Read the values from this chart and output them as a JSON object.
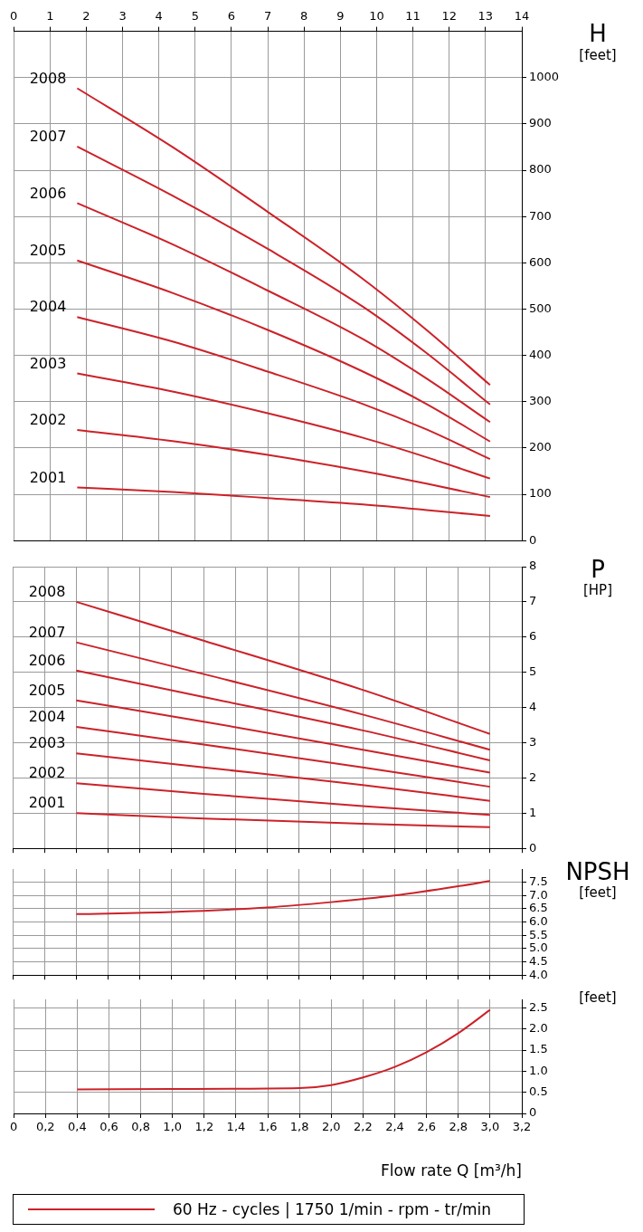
{
  "chart_data": [
    {
      "type": "line",
      "ylabel": "H [feet]",
      "xlim": [
        0,
        3.2
      ],
      "x2lim": [
        0,
        14
      ],
      "x2ticks": [
        0,
        1,
        2,
        3,
        4,
        5,
        6,
        7,
        8,
        9,
        10,
        11,
        12,
        13,
        14
      ],
      "ylim": [
        0,
        1100
      ],
      "yticks": [
        0,
        100,
        200,
        300,
        400,
        500,
        600,
        700,
        800,
        900,
        1000
      ],
      "grid": true,
      "x": [
        0.4,
        1.0,
        1.6,
        2.2,
        2.6,
        3.0
      ],
      "series": [
        {
          "name": "2008",
          "color": "#cc2229",
          "values": [
            977,
            850,
            710,
            565,
            455,
            336
          ]
        },
        {
          "name": "2007",
          "color": "#cc2229",
          "values": [
            851,
            745,
            630,
            505,
            405,
            294
          ]
        },
        {
          "name": "2006",
          "color": "#cc2229",
          "values": [
            729,
            640,
            540,
            435,
            350,
            256
          ]
        },
        {
          "name": "2005",
          "color": "#cc2229",
          "values": [
            605,
            535,
            455,
            365,
            295,
            214
          ]
        },
        {
          "name": "2004",
          "color": "#cc2229",
          "values": [
            483,
            430,
            365,
            295,
            240,
            176
          ]
        },
        {
          "name": "2003",
          "color": "#cc2229",
          "values": [
            361,
            322,
            275,
            222,
            180,
            134
          ]
        },
        {
          "name": "2002",
          "color": "#cc2229",
          "values": [
            239,
            215,
            185,
            150,
            123,
            94
          ]
        },
        {
          "name": "2001",
          "color": "#cc2229",
          "values": [
            115,
            105,
            92,
            78,
            66,
            53
          ]
        }
      ]
    },
    {
      "type": "line",
      "ylabel": "P [HP]",
      "xlim": [
        0,
        3.2
      ],
      "xticks": [
        {
          "value": 0,
          "label": null
        },
        {
          "value": 0.2,
          "label": null
        },
        {
          "value": 0.4,
          "label": null
        },
        {
          "value": 0.6,
          "label": null
        },
        {
          "value": 0.8,
          "label": null
        },
        {
          "value": 1.0,
          "label": null
        },
        {
          "value": 1.2,
          "label": null
        },
        {
          "value": 1.4,
          "label": null
        },
        {
          "value": 1.6,
          "label": null
        },
        {
          "value": 1.8,
          "label": null
        },
        {
          "value": 2.0,
          "label": null
        },
        {
          "value": 2.2,
          "label": null
        },
        {
          "value": 2.4,
          "label": null
        },
        {
          "value": 2.6,
          "label": null
        },
        {
          "value": 2.8,
          "label": null
        },
        {
          "value": 3.0,
          "label": null
        },
        {
          "value": 3.2,
          "label": null
        }
      ],
      "ylim": [
        0,
        8
      ],
      "yticks": [
        0,
        1,
        2,
        3,
        4,
        5,
        6,
        7,
        8
      ],
      "grid": true,
      "tick_labels": "y",
      "x": [
        0.4,
        1.2,
        2.2,
        3.0
      ],
      "series": [
        {
          "name": "2008",
          "color": "#cc2229",
          "values": [
            7.0,
            5.9,
            4.5,
            3.25
          ]
        },
        {
          "name": "2007",
          "color": "#cc2229",
          "values": [
            5.85,
            4.95,
            3.8,
            2.8
          ]
        },
        {
          "name": "2006",
          "color": "#cc2229",
          "values": [
            5.05,
            4.3,
            3.35,
            2.5
          ]
        },
        {
          "name": "2005",
          "color": "#cc2229",
          "values": [
            4.2,
            3.6,
            2.8,
            2.15
          ]
        },
        {
          "name": "2004",
          "color": "#cc2229",
          "values": [
            3.45,
            2.95,
            2.3,
            1.75
          ]
        },
        {
          "name": "2003",
          "color": "#cc2229",
          "values": [
            2.7,
            2.3,
            1.8,
            1.35
          ]
        },
        {
          "name": "2002",
          "color": "#cc2229",
          "values": [
            1.85,
            1.55,
            1.2,
            0.95
          ]
        },
        {
          "name": "2001",
          "color": "#cc2229",
          "values": [
            1.0,
            0.85,
            0.7,
            0.6
          ]
        }
      ]
    },
    {
      "type": "line",
      "ylabel": "NPSH [feet]",
      "xlim": [
        0,
        3.2
      ],
      "xticks": [
        0,
        0.2,
        0.4,
        0.6,
        0.8,
        1.0,
        1.2,
        1.4,
        1.6,
        1.8,
        2.0,
        2.2,
        2.4,
        2.6,
        2.8,
        3.0,
        3.2
      ],
      "ylim": [
        4,
        8
      ],
      "yticks": [
        {
          "value": 4,
          "label": "4.0"
        },
        4.5,
        {
          "value": 5,
          "label": "5.0"
        },
        5.5,
        {
          "value": 6,
          "label": "6.0"
        },
        6.5,
        {
          "value": 7,
          "label": "7.0"
        },
        7.5
      ],
      "grid": true,
      "tick_labels": "y",
      "x": [
        0.4,
        1.0,
        1.6,
        2.0,
        2.4,
        2.8,
        3.0
      ],
      "series": [
        {
          "color": "#cc2229",
          "values": [
            6.3,
            6.38,
            6.55,
            6.75,
            7.0,
            7.35,
            7.55
          ]
        }
      ]
    },
    {
      "type": "line",
      "ylabel": "[feet]",
      "xlabel": "Flow rate Q [m³/h]",
      "xlim": [
        0,
        3.2
      ],
      "xticks": [
        0,
        {
          "value": 0.2,
          "label": "0,2"
        },
        {
          "value": 0.4,
          "label": "0,4"
        },
        {
          "value": 0.6,
          "label": "0,6"
        },
        {
          "value": 0.8,
          "label": "0,8"
        },
        {
          "value": 1.0,
          "label": "1,0"
        },
        {
          "value": 1.2,
          "label": "1,2"
        },
        {
          "value": 1.4,
          "label": "1,4"
        },
        {
          "value": 1.6,
          "label": "1,6"
        },
        {
          "value": 1.8,
          "label": "1,8"
        },
        {
          "value": 2.0,
          "label": "2,0"
        },
        {
          "value": 2.2,
          "label": "2,2"
        },
        {
          "value": 2.4,
          "label": "2,4"
        },
        {
          "value": 2.6,
          "label": "2,6"
        },
        {
          "value": 2.8,
          "label": "2,8"
        },
        {
          "value": 3.0,
          "label": "3,0"
        },
        {
          "value": 3.2,
          "label": "3,2"
        }
      ],
      "ylim": [
        0,
        2.7
      ],
      "yticks": [
        0,
        0.5,
        {
          "value": 1,
          "label": "1.0"
        },
        1.5,
        {
          "value": 2,
          "label": "2.0"
        },
        2.5
      ],
      "grid": true,
      "x": [
        0.4,
        1.0,
        1.8,
        2.0,
        2.2,
        2.4,
        2.6,
        2.8,
        3.0
      ],
      "annotations": [
        "60 Hz - cycles | 1750 1/min - rpm - tr/min"
      ],
      "series": [
        {
          "color": "#cc2229",
          "values": [
            0.57,
            0.58,
            0.6,
            0.67,
            0.85,
            1.1,
            1.45,
            1.9,
            2.45
          ]
        }
      ]
    }
  ]
}
